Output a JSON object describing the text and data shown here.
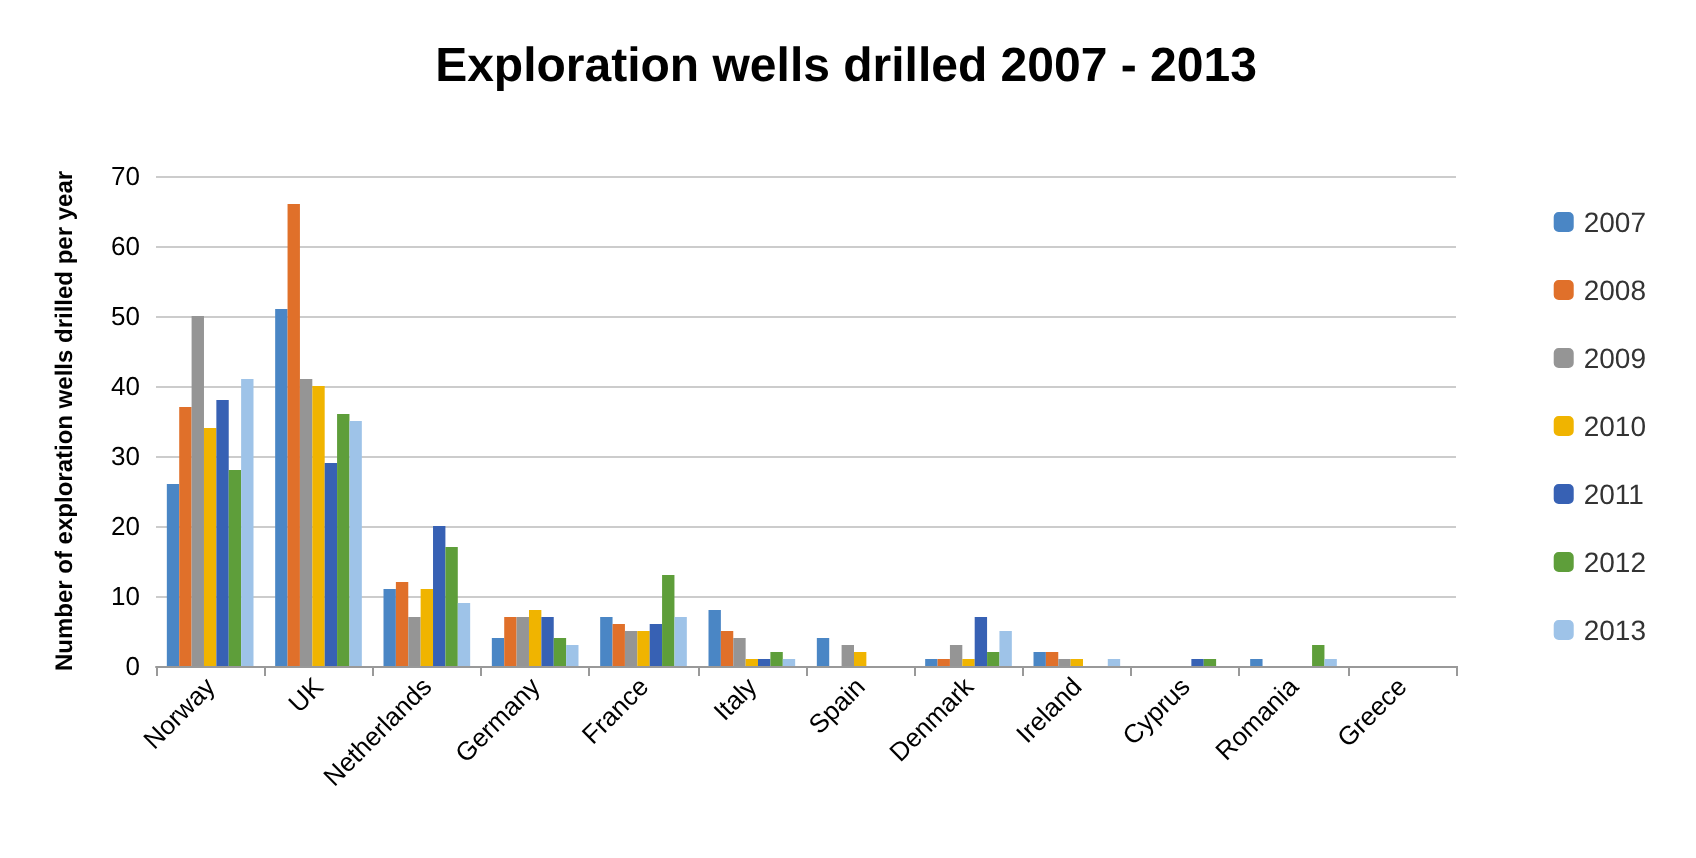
{
  "chart_data": {
    "type": "bar",
    "title": "Exploration wells drilled 2007 - 2013",
    "ylabel": "Number of exploration wells drilled per year",
    "categories": [
      "Norway",
      "UK",
      "Netherlands",
      "Germany",
      "France",
      "Italy",
      "Spain",
      "Denmark",
      "Ireland",
      "Cyprus",
      "Romania",
      "Greece"
    ],
    "series": [
      {
        "name": "2007",
        "color": "#4a86c5",
        "values": [
          26,
          51,
          11,
          4,
          7,
          8,
          4,
          1,
          2,
          0,
          1,
          0
        ]
      },
      {
        "name": "2008",
        "color": "#e0702a",
        "values": [
          37,
          66,
          12,
          7,
          6,
          5,
          0,
          1,
          2,
          0,
          0,
          0
        ]
      },
      {
        "name": "2009",
        "color": "#959595",
        "values": [
          50,
          41,
          7,
          7,
          5,
          4,
          3,
          3,
          1,
          0,
          0,
          0
        ]
      },
      {
        "name": "2010",
        "color": "#f0b400",
        "values": [
          34,
          40,
          11,
          8,
          5,
          1,
          2,
          1,
          1,
          0,
          0,
          0
        ]
      },
      {
        "name": "2011",
        "color": "#3761b4",
        "values": [
          38,
          29,
          20,
          7,
          6,
          1,
          0,
          7,
          0,
          1,
          0,
          0
        ]
      },
      {
        "name": "2012",
        "color": "#5e9e3a",
        "values": [
          28,
          36,
          17,
          4,
          13,
          2,
          0,
          2,
          0,
          1,
          3,
          0
        ]
      },
      {
        "name": "2013",
        "color": "#9ec3e8",
        "values": [
          41,
          35,
          9,
          3,
          7,
          1,
          0,
          5,
          1,
          0,
          1,
          0
        ]
      }
    ],
    "ylim": [
      0,
      70
    ],
    "yticks": [
      0,
      10,
      20,
      30,
      40,
      50,
      60,
      70
    ],
    "grid": "y",
    "legend": "right"
  }
}
